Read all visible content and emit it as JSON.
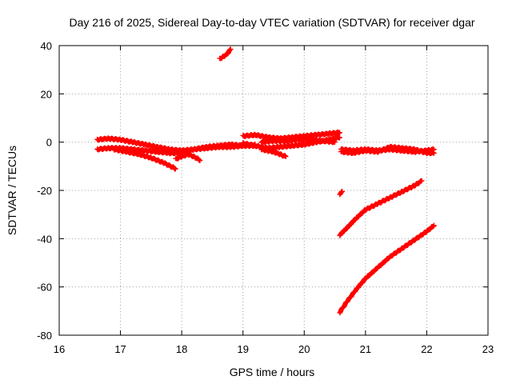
{
  "chart_data": {
    "type": "scatter",
    "title": "Day 216 of 2025, Sidereal Day-to-day VTEC variation (SDTVAR) for receiver dgar",
    "xlabel": "GPS time / hours",
    "ylabel": "SDTVAR / TECUs",
    "xlim": [
      16,
      23
    ],
    "ylim": [
      -80,
      40
    ],
    "xticks": [
      "16",
      "17",
      "18",
      "19",
      "20",
      "21",
      "22",
      "23"
    ],
    "yticks": [
      "40",
      "20",
      "0",
      "-20",
      "-40",
      "-60",
      "-80"
    ],
    "xtick_values": [
      16,
      17,
      18,
      19,
      20,
      21,
      22,
      23
    ],
    "ytick_values": [
      40,
      20,
      0,
      -20,
      -40,
      -60,
      -80
    ],
    "grid": true,
    "marker": "+",
    "color": "#ff0000",
    "series": [
      {
        "name": "arc-top-left",
        "x": [
          16.62,
          16.8,
          17.0,
          17.2,
          17.4,
          17.6,
          17.8,
          18.0,
          18.2,
          18.4,
          18.6,
          18.8,
          19.0,
          19.2
        ],
        "y": [
          1,
          1.5,
          1,
          0,
          -1,
          -2,
          -3,
          -3.5,
          -3,
          -2.5,
          -2,
          -2,
          -1.5,
          -1
        ]
      },
      {
        "name": "arc-mid-left",
        "x": [
          16.62,
          16.8,
          17.0,
          17.2,
          17.4,
          17.6,
          17.8,
          18.0,
          18.2,
          18.4,
          18.6,
          18.8,
          19.0,
          19.2
        ],
        "y": [
          -3,
          -2.5,
          -2.5,
          -3,
          -3.5,
          -4,
          -4.5,
          -4.5,
          -3,
          -2,
          -1.5,
          -1,
          -1.5,
          -1.5
        ]
      },
      {
        "name": "arc-descending",
        "x": [
          16.9,
          17.1,
          17.3,
          17.5,
          17.7,
          17.9
        ],
        "y": [
          -3,
          -4,
          -5,
          -6.5,
          -8.5,
          -11
        ]
      },
      {
        "name": "arc-short-dip",
        "x": [
          17.9,
          18.0,
          18.1,
          18.2,
          18.3
        ],
        "y": [
          -7,
          -6,
          -5,
          -6,
          -7.5
        ]
      },
      {
        "name": "arc-high",
        "x": [
          18.62,
          18.68,
          18.74,
          18.8
        ],
        "y": [
          34.5,
          35.5,
          36.5,
          38.5
        ]
      },
      {
        "name": "arc-center-upper",
        "x": [
          19.0,
          19.2,
          19.4,
          19.6,
          19.8,
          20.0,
          20.2,
          20.4,
          20.58
        ],
        "y": [
          2.5,
          3,
          2,
          1.5,
          2,
          2.5,
          3,
          3.5,
          4
        ]
      },
      {
        "name": "arc-center-lower",
        "x": [
          19.0,
          19.2,
          19.4,
          19.6,
          19.8,
          20.0,
          20.2,
          20.4,
          20.58
        ],
        "y": [
          -0.5,
          -1.5,
          -2.5,
          -2,
          -1.5,
          -1,
          0,
          1,
          2
        ]
      },
      {
        "name": "arc-center-mid",
        "x": [
          19.3,
          19.5,
          19.7,
          19.9,
          20.1,
          20.3,
          20.5
        ],
        "y": [
          0,
          0.5,
          0.5,
          1,
          1,
          0.5,
          0
        ]
      },
      {
        "name": "arc-center-dip",
        "x": [
          19.3,
          19.4,
          19.5,
          19.6,
          19.7
        ],
        "y": [
          -3,
          -3.5,
          -4,
          -5,
          -6
        ]
      },
      {
        "name": "arc-right-a",
        "x": [
          20.6,
          20.8,
          21.0,
          21.2,
          21.4,
          21.6,
          21.8,
          22.0,
          22.12
        ],
        "y": [
          -3,
          -3.5,
          -3,
          -3.5,
          -3,
          -3.5,
          -4,
          -3.5,
          -3
        ]
      },
      {
        "name": "arc-right-b",
        "x": [
          20.6,
          20.8,
          21.0,
          21.2,
          21.4,
          21.6,
          21.8,
          22.0,
          22.12
        ],
        "y": [
          -4,
          -4.5,
          -3.5,
          -4,
          -2,
          -2.5,
          -3,
          -4.5,
          -4.5
        ]
      },
      {
        "name": "isolated-point",
        "x": [
          20.58,
          20.62
        ],
        "y": [
          -21.5,
          -20.5
        ]
      },
      {
        "name": "arc-falling-1",
        "x": [
          20.58,
          20.7,
          20.85,
          21.0,
          21.2,
          21.4,
          21.6,
          21.8,
          21.92
        ],
        "y": [
          -38.5,
          -35.5,
          -31.5,
          -28,
          -25.5,
          -23,
          -20.5,
          -18,
          -16
        ]
      },
      {
        "name": "arc-falling-2",
        "x": [
          20.58,
          20.7,
          20.85,
          21.0,
          21.2,
          21.4,
          21.6,
          21.8,
          22.0,
          22.12
        ],
        "y": [
          -70.5,
          -66,
          -61,
          -56.5,
          -52,
          -47.5,
          -44,
          -40.5,
          -37,
          -34.5
        ]
      }
    ]
  }
}
